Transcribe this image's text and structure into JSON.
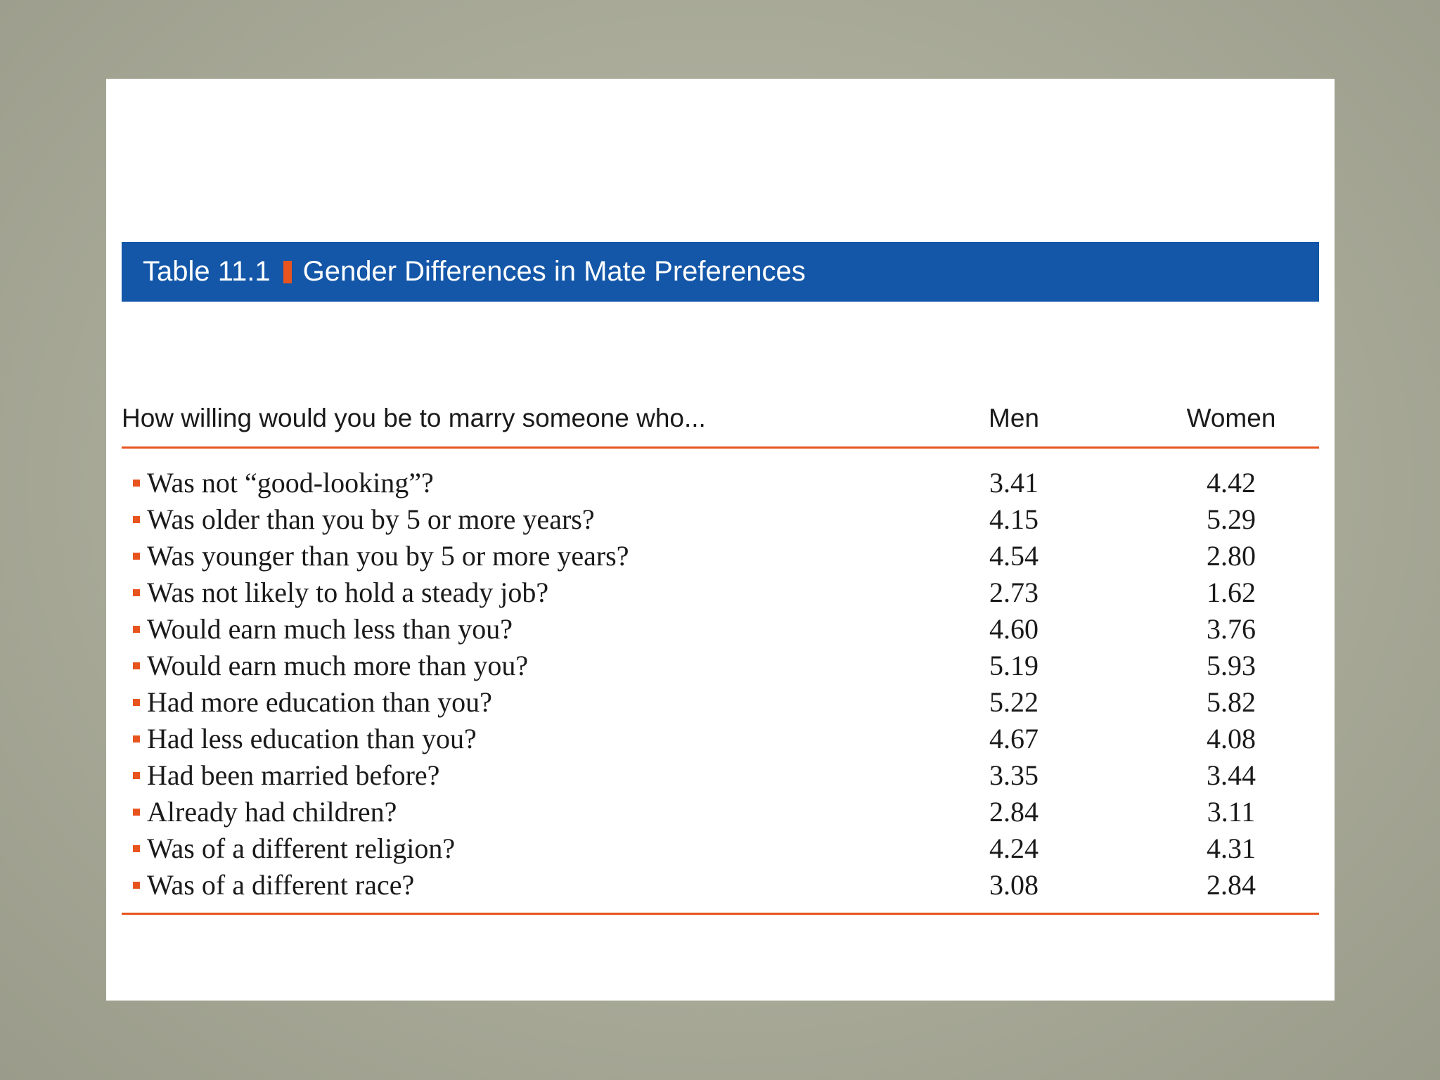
{
  "colors": {
    "title_bar": "#1457a8",
    "accent": "#e8541e",
    "background": "#a9aa98"
  },
  "table": {
    "title_label": "Table 11.1",
    "title_text": "Gender Differences in Mate Preferences",
    "headers": {
      "question": "How willing would you be to marry someone who...",
      "men": "Men",
      "women": "Women"
    },
    "rows": [
      {
        "question": "Was not “good-looking”?",
        "men": "3.41",
        "women": "4.42"
      },
      {
        "question": "Was older than you by 5 or more years?",
        "men": "4.15",
        "women": "5.29"
      },
      {
        "question": "Was younger than you by 5 or more years?",
        "men": "4.54",
        "women": "2.80"
      },
      {
        "question": "Was not likely to hold a steady job?",
        "men": "2.73",
        "women": "1.62"
      },
      {
        "question": "Would earn much less than you?",
        "men": "4.60",
        "women": "3.76"
      },
      {
        "question": "Would earn much more than you?",
        "men": "5.19",
        "women": "5.93"
      },
      {
        "question": "Had more education than you?",
        "men": "5.22",
        "women": "5.82"
      },
      {
        "question": "Had less education than you?",
        "men": "4.67",
        "women": "4.08"
      },
      {
        "question": "Had been married before?",
        "men": "3.35",
        "women": "3.44"
      },
      {
        "question": "Already had children?",
        "men": "2.84",
        "women": "3.11"
      },
      {
        "question": "Was of a different religion?",
        "men": "4.24",
        "women": "4.31"
      },
      {
        "question": "Was of a different race?",
        "men": "3.08",
        "women": "2.84"
      }
    ]
  }
}
